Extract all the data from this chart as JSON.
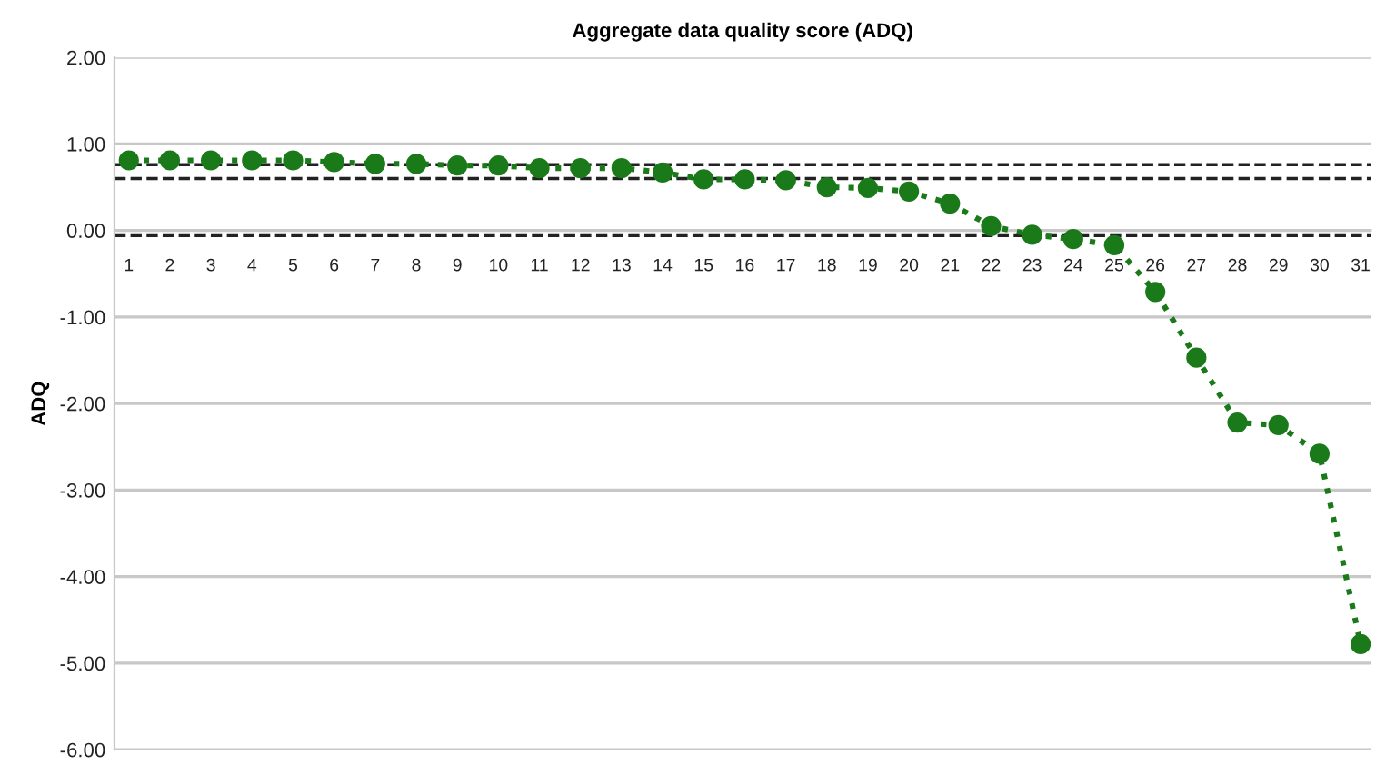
{
  "chart_data": {
    "type": "line",
    "title": "Aggregate data quality score (ADQ)",
    "ylabel": "ADQ",
    "categories": [
      "1",
      "2",
      "3",
      "4",
      "5",
      "6",
      "7",
      "8",
      "9",
      "10",
      "11",
      "12",
      "13",
      "14",
      "15",
      "16",
      "17",
      "18",
      "19",
      "20",
      "21",
      "22",
      "23",
      "24",
      "25",
      "26",
      "27",
      "28",
      "29",
      "30",
      "31"
    ],
    "series": [
      {
        "color": "#1a7a1a",
        "values": [
          0.81,
          0.81,
          0.81,
          0.81,
          0.81,
          0.79,
          0.77,
          0.77,
          0.75,
          0.75,
          0.72,
          0.72,
          0.72,
          0.67,
          0.59,
          0.59,
          0.58,
          0.5,
          0.49,
          0.45,
          0.31,
          0.05,
          -0.05,
          -0.1,
          -0.17,
          -0.71,
          -1.47,
          -2.22,
          -2.25,
          -2.58,
          -4.78
        ]
      }
    ],
    "ylim": [
      -6,
      2
    ],
    "yticks": [
      {
        "value": -6,
        "label": "-6.00"
      },
      {
        "value": -5,
        "label": "-5.00"
      },
      {
        "value": -4,
        "label": "-4.00"
      },
      {
        "value": -3,
        "label": "-3.00"
      },
      {
        "value": -2,
        "label": "-2.00"
      },
      {
        "value": -1,
        "label": "-1.00"
      },
      {
        "value": 0,
        "label": "0.00"
      },
      {
        "value": 1,
        "label": "1.00"
      },
      {
        "value": 2,
        "label": "2.00"
      }
    ],
    "ref_lines": [
      {
        "axis": "y",
        "value": 0.76,
        "color": "#222222",
        "line_style": "dashed"
      },
      {
        "axis": "y",
        "value": 0.6,
        "color": "#222222",
        "line_style": "dashed"
      },
      {
        "axis": "y",
        "value": -0.06,
        "color": "#222222",
        "line_style": "dashed"
      }
    ],
    "grid": "y",
    "marker": "circle",
    "line_style": "dotted",
    "legend": false
  }
}
